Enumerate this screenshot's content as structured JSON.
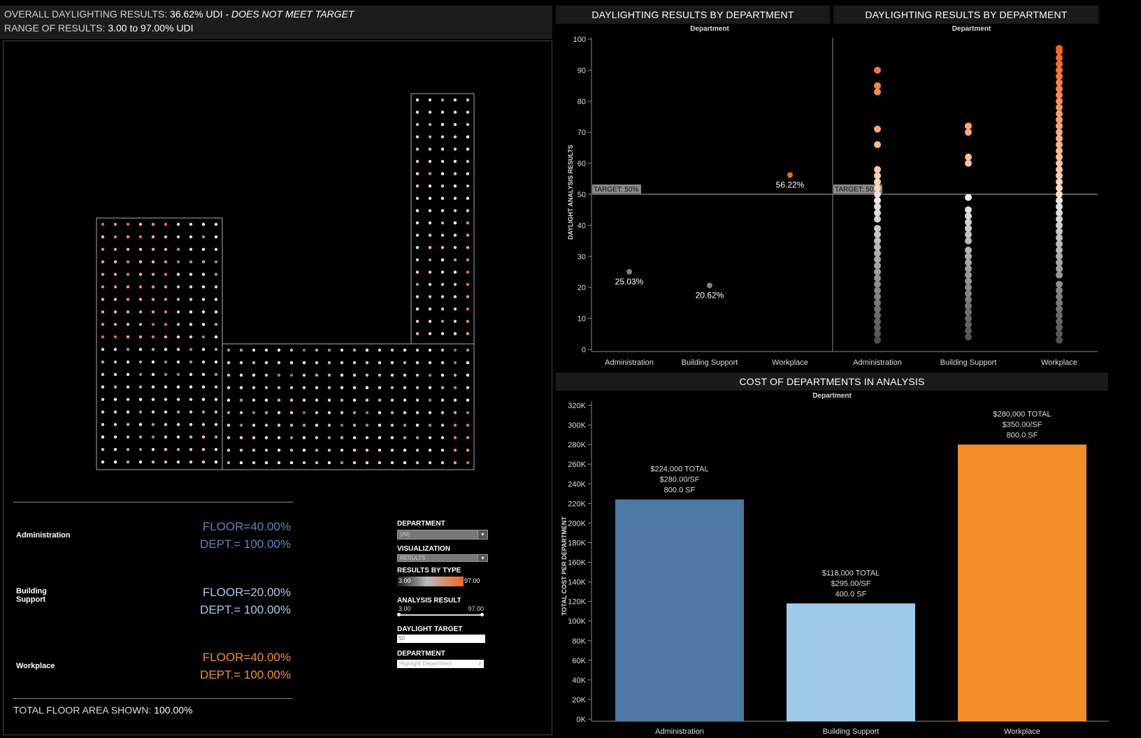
{
  "summary": {
    "overall_label": "OVERALL DAYLIGHTING RESULTS:",
    "overall_value": "36.62% UDI",
    "overall_status": "- DOES NOT MEET TARGET",
    "range_label": "RANGE OF RESULTS:",
    "range_value": "3.00 to 97.00% UDI"
  },
  "floor_legend": {
    "items": [
      {
        "name": "Administration",
        "floor": "FLOOR=40.00%",
        "dept": "DEPT.= 100.00%",
        "color": "#5b86b8"
      },
      {
        "name": "Building\nSupport",
        "floor": "FLOOR=20.00%",
        "dept": "DEPT.= 100.00%",
        "color": "#a9cbe8"
      },
      {
        "name": "Workplace",
        "floor": "FLOOR=40.00%",
        "dept": "DEPT.= 100.00%",
        "color": "#f28e2b"
      }
    ],
    "total_label": "TOTAL FLOOR AREA SHOWN:",
    "total_value": "100.00%"
  },
  "controls": {
    "department_label": "DEPARTMENT",
    "department_value": "(All)",
    "visualization_label": "VISUALIZATION",
    "visualization_value": "RESULTS",
    "results_by_type_label": "RESULTS BY TYPE",
    "results_min": "3.00",
    "results_max": "97.00",
    "analysis_result_label": "ANALYSIS RESULT",
    "analysis_min": "3.00",
    "analysis_max": "97.00",
    "daylight_target_label": "DAYLIGHT TARGET",
    "daylight_target_value": "50",
    "highlight_label": "DEPARTMENT",
    "highlight_placeholder": "Highlight Department"
  },
  "colors": {
    "admin": "#4e79a7",
    "support": "#a0cbe8",
    "workplace": "#f28e2b",
    "hot": "#f26522"
  },
  "chart_data": [
    {
      "type": "scatter",
      "title": "DAYLIGHTING RESULTS BY DEPARTMENT",
      "subtitle": "Department",
      "ylabel": "DAYLIGHT ANALYSIS RESULTS",
      "ylim": [
        0,
        100
      ],
      "yticks": [
        0,
        10,
        20,
        30,
        40,
        50,
        60,
        70,
        80,
        90,
        100
      ],
      "categories": [
        "Administration",
        "Building Support",
        "Workplace"
      ],
      "values": [
        25.03,
        20.62,
        56.22
      ],
      "labels": [
        "25.03%",
        "20.62%",
        "56.22%"
      ],
      "target": {
        "value": 50,
        "label": "TARGET: 50%"
      }
    },
    {
      "type": "scatter",
      "title": "DAYLIGHTING RESULTS BY DEPARTMENT",
      "subtitle": "Department",
      "ylim": [
        0,
        100
      ],
      "categories": [
        "Administration",
        "Building Support",
        "Workplace"
      ],
      "target": {
        "value": 50,
        "label": "TARGET: 50%"
      },
      "series": [
        {
          "name": "Administration",
          "values": [
            3,
            5,
            7,
            9,
            11,
            13,
            15,
            17,
            19,
            21,
            23,
            25,
            27,
            29,
            31,
            33,
            35,
            37,
            39,
            42,
            44,
            46,
            48,
            50,
            52,
            54,
            56,
            58,
            66,
            71,
            83,
            85,
            90
          ]
        },
        {
          "name": "Building Support",
          "values": [
            4,
            6,
            8,
            10,
            12,
            14,
            16,
            18,
            20,
            22,
            24,
            26,
            28,
            30,
            32,
            35,
            37,
            39,
            41,
            43,
            45,
            49,
            60,
            62,
            70,
            72
          ]
        },
        {
          "name": "Workplace",
          "values": [
            3,
            5,
            7,
            9,
            11,
            13,
            15,
            17,
            19,
            21,
            24,
            26,
            28,
            30,
            32,
            34,
            36,
            38,
            40,
            42,
            44,
            46,
            48,
            50,
            52,
            54,
            56,
            58,
            60,
            62,
            64,
            66,
            68,
            70,
            72,
            74,
            76,
            78,
            80,
            82,
            84,
            86,
            88,
            90,
            92,
            94,
            96,
            97
          ]
        }
      ]
    },
    {
      "type": "bar",
      "title": "COST OF DEPARTMENTS IN ANALYSIS",
      "subtitle": "Department",
      "ylabel": "TOTAL COST PER DEPARTMENT",
      "ylim": [
        0,
        320000
      ],
      "ytick_labels": [
        "0K",
        "20K",
        "40K",
        "60K",
        "80K",
        "100K",
        "120K",
        "140K",
        "160K",
        "180K",
        "200K",
        "220K",
        "240K",
        "260K",
        "280K",
        "300K",
        "320K"
      ],
      "categories": [
        "Administration",
        "Building Support",
        "Workplace"
      ],
      "values": [
        224000,
        118000,
        280000
      ],
      "annotations": [
        [
          "$224,000 TOTAL",
          "$280.00/SF",
          "800.0 SF"
        ],
        [
          "$118,000 TOTAL",
          "$295.00/SF",
          "400.0 SF"
        ],
        [
          "$280,000 TOTAL",
          "$350.00/SF",
          "800.0 SF"
        ]
      ]
    }
  ]
}
